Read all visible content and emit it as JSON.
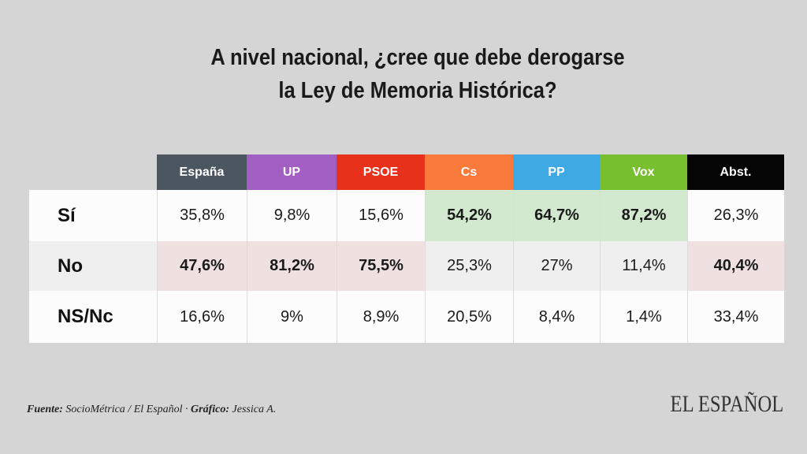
{
  "title_line1": "A nivel nacional, ¿cree que debe derogarse",
  "title_line2": "la Ley de Memoria Histórica?",
  "chart_data": {
    "type": "table",
    "columns": [
      {
        "label": "España",
        "color": "#4b5661"
      },
      {
        "label": "UP",
        "color": "#a15fc3"
      },
      {
        "label": "PSOE",
        "color": "#e8311b"
      },
      {
        "label": "Cs",
        "color": "#fa7a3c"
      },
      {
        "label": "PP",
        "color": "#3fa9e3"
      },
      {
        "label": "Vox",
        "color": "#77bf2e"
      },
      {
        "label": "Abst.",
        "color": "#050505"
      }
    ],
    "rows": [
      {
        "label": "Sí",
        "values": [
          "35,8%",
          "9,8%",
          "15,6%",
          "54,2%",
          "64,7%",
          "87,2%",
          "26,3%"
        ],
        "highlight": [
          false,
          false,
          false,
          true,
          true,
          true,
          false
        ],
        "highlight_color": "#d2e9cf"
      },
      {
        "label": "No",
        "values": [
          "47,6%",
          "81,2%",
          "75,5%",
          "25,3%",
          "27%",
          "11,4%",
          "40,4%"
        ],
        "highlight": [
          true,
          true,
          true,
          false,
          false,
          false,
          true
        ],
        "highlight_color": "#f0e1e1"
      },
      {
        "label": "NS/Nc",
        "values": [
          "16,6%",
          "9%",
          "8,9%",
          "20,5%",
          "8,4%",
          "1,4%",
          "33,4%"
        ],
        "highlight": [
          false,
          false,
          false,
          false,
          false,
          false,
          false
        ],
        "highlight_color": ""
      }
    ]
  },
  "footer": {
    "source_label": "Fuente:",
    "source": " SocioMétrica / El Español · ",
    "credit_label": "Gráfico:",
    "credit": " Jessica A."
  },
  "logo": "EL ESPAÑOL"
}
